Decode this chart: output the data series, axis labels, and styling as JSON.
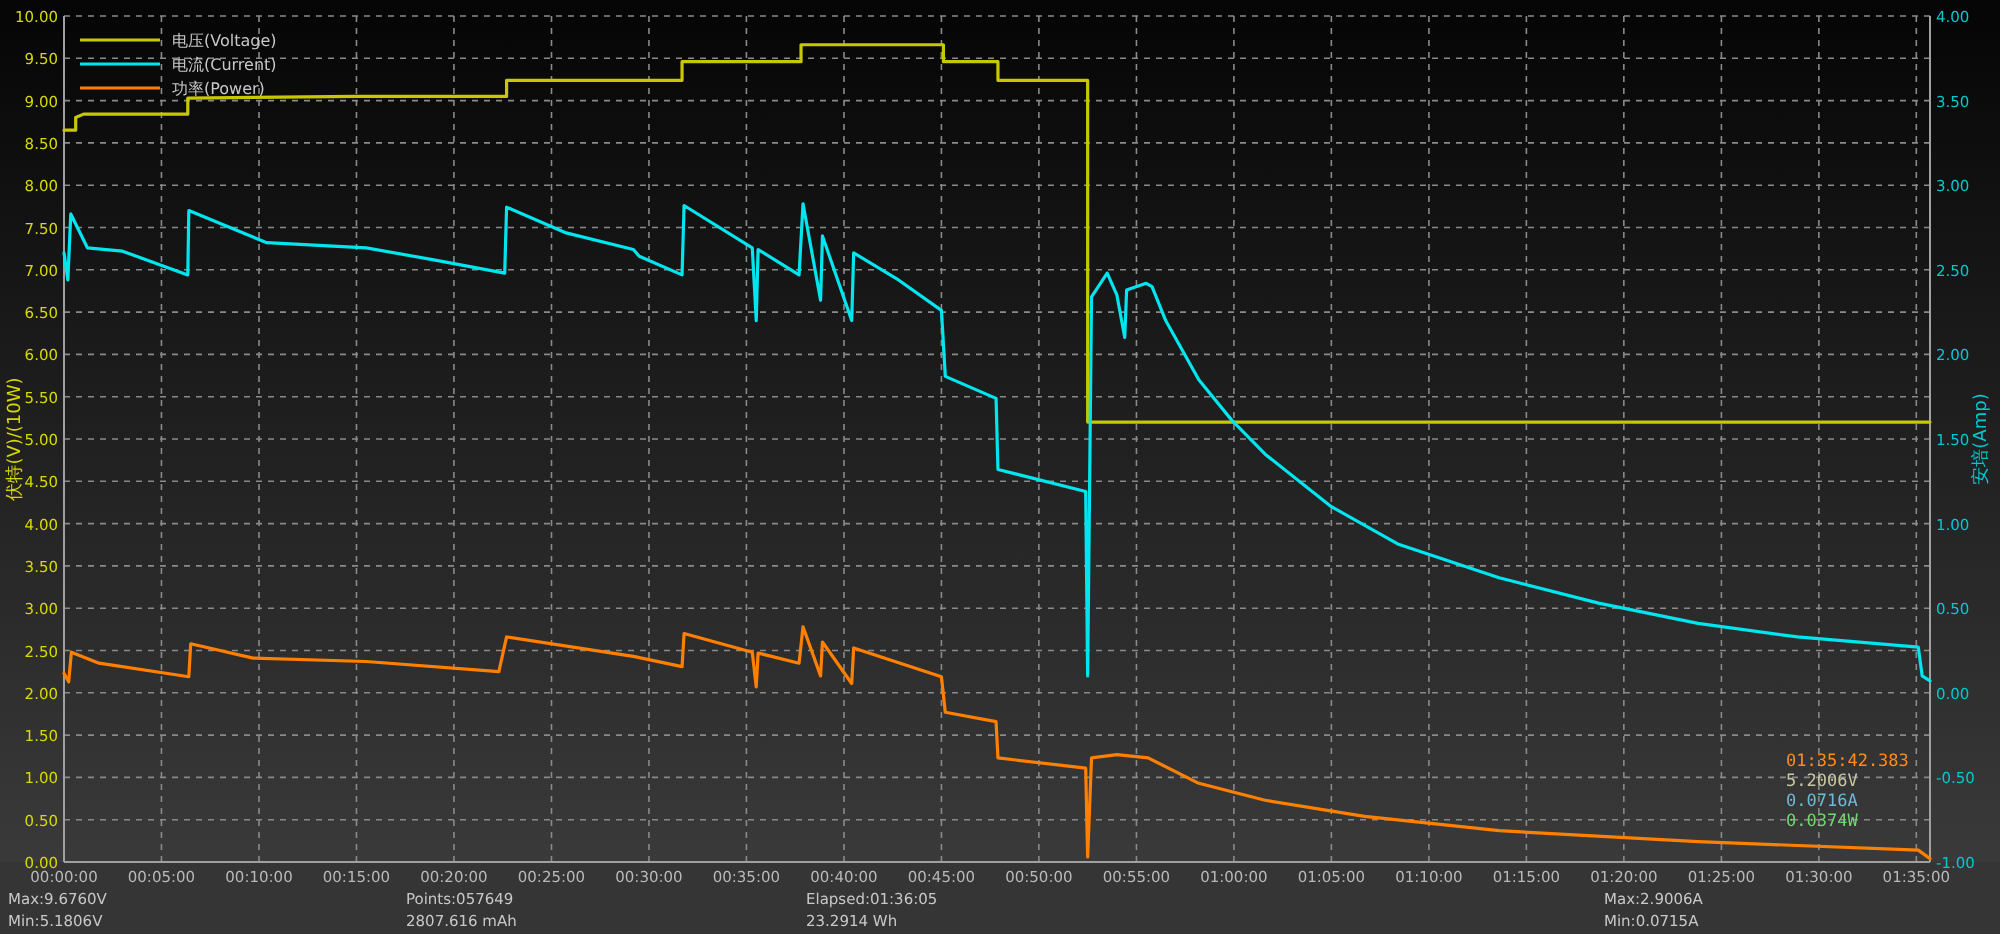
{
  "chart_data": {
    "type": "line",
    "ylabel": "伏特(V)/(10W)",
    "y2label": "安培(Amp)",
    "xlim": [
      0,
      1.595
    ],
    "ylim": [
      0,
      10
    ],
    "y2lim": [
      -1,
      4
    ],
    "xticks": [
      {
        "value": 0,
        "label": "00:00:00"
      },
      {
        "value": 0.0833,
        "label": "00:05:00"
      },
      {
        "value": 0.1667,
        "label": "00:10:00"
      },
      {
        "value": 0.25,
        "label": "00:15:00"
      },
      {
        "value": 0.3333,
        "label": "00:20:00"
      },
      {
        "value": 0.4167,
        "label": "00:25:00"
      },
      {
        "value": 0.5,
        "label": "00:30:00"
      },
      {
        "value": 0.5833,
        "label": "00:35:00"
      },
      {
        "value": 0.6667,
        "label": "00:40:00"
      },
      {
        "value": 0.75,
        "label": "00:45:00"
      },
      {
        "value": 0.8333,
        "label": "00:50:00"
      },
      {
        "value": 0.9167,
        "label": "00:55:00"
      },
      {
        "value": 1,
        "label": "01:00:00"
      },
      {
        "value": 1.0833,
        "label": "01:05:00"
      },
      {
        "value": 1.1667,
        "label": "01:10:00"
      },
      {
        "value": 1.25,
        "label": "01:15:00"
      },
      {
        "value": 1.3333,
        "label": "01:20:00"
      },
      {
        "value": 1.4167,
        "label": "01:25:00"
      },
      {
        "value": 1.5,
        "label": "01:30:00"
      },
      {
        "value": 1.5833,
        "label": "01:35:00"
      }
    ],
    "yticks": [
      {
        "value": 0,
        "label": "0.00"
      },
      {
        "value": 0.5,
        "label": "0.50"
      },
      {
        "value": 1,
        "label": "1.00"
      },
      {
        "value": 1.5,
        "label": "1.50"
      },
      {
        "value": 2,
        "label": "2.00"
      },
      {
        "value": 2.5,
        "label": "2.50"
      },
      {
        "value": 3,
        "label": "3.00"
      },
      {
        "value": 3.5,
        "label": "3.50"
      },
      {
        "value": 4,
        "label": "4.00"
      },
      {
        "value": 4.5,
        "label": "4.50"
      },
      {
        "value": 5,
        "label": "5.00"
      },
      {
        "value": 5.5,
        "label": "5.50"
      },
      {
        "value": 6,
        "label": "6.00"
      },
      {
        "value": 6.5,
        "label": "6.50"
      },
      {
        "value": 7,
        "label": "7.00"
      },
      {
        "value": 7.5,
        "label": "7.50"
      },
      {
        "value": 8,
        "label": "8.00"
      },
      {
        "value": 8.5,
        "label": "8.50"
      },
      {
        "value": 9,
        "label": "9.00"
      },
      {
        "value": 9.5,
        "label": "9.50"
      },
      {
        "value": 10,
        "label": "10.00"
      }
    ],
    "y2ticks": [
      {
        "value": -1,
        "label": "-1.00"
      },
      {
        "value": -0.5,
        "label": "-0.50"
      },
      {
        "value": 0,
        "label": "0.00"
      },
      {
        "value": 0.5,
        "label": "0.50"
      },
      {
        "value": 1,
        "label": "1.00"
      },
      {
        "value": 1.5,
        "label": "1.50"
      },
      {
        "value": 2,
        "label": "2.00"
      },
      {
        "value": 2.5,
        "label": "2.50"
      },
      {
        "value": 3,
        "label": "3.00"
      },
      {
        "value": 3.5,
        "label": "3.50"
      },
      {
        "value": 4,
        "label": "4.00"
      }
    ],
    "grid": true,
    "legend": "top left",
    "series": [
      {
        "name": "电压(Voltage)",
        "color": "#c8c800",
        "x": [
          0,
          0.01,
          0.01,
          0.0167,
          0.1058,
          0.1058,
          0.25,
          0.3783,
          0.3783,
          0.5283,
          0.5283,
          0.63,
          0.63,
          0.7517,
          0.7517,
          0.7983,
          0.7983,
          0.875,
          0.875,
          1.595
        ],
        "values": [
          8.65,
          8.65,
          8.8,
          8.84,
          8.84,
          9.03,
          9.05,
          9.05,
          9.24,
          9.24,
          9.46,
          9.46,
          9.66,
          9.66,
          9.46,
          9.46,
          9.24,
          9.24,
          5.2,
          5.2
        ]
      },
      {
        "name": "电流(Current)",
        "color": "#00e5ee",
        "axis": "y2",
        "x": [
          0,
          0.0033,
          0.0058,
          0.02,
          0.05,
          0.1058,
          0.1067,
          0.1733,
          0.2583,
          0.315,
          0.3767,
          0.3783,
          0.4283,
          0.4867,
          0.4917,
          0.5283,
          0.53,
          0.5883,
          0.5917,
          0.5933,
          0.6283,
          0.6317,
          0.6467,
          0.6483,
          0.6733,
          0.675,
          0.7133,
          0.75,
          0.7533,
          0.7967,
          0.7983,
          0.8733,
          0.875,
          0.8783,
          0.8917,
          0.9,
          0.9067,
          0.9083,
          0.925,
          0.93,
          0.9417,
          0.97,
          0.9983,
          1.0267,
          1.0833,
          1.14,
          1.2267,
          1.3117,
          1.3967,
          1.4817,
          1.585,
          1.5883,
          1.595
        ],
        "values": [
          2.6,
          2.44,
          2.83,
          2.63,
          2.61,
          2.47,
          2.85,
          2.66,
          2.63,
          2.56,
          2.48,
          2.87,
          2.72,
          2.62,
          2.58,
          2.47,
          2.88,
          2.63,
          2.2,
          2.62,
          2.47,
          2.89,
          2.32,
          2.7,
          2.2,
          2.6,
          2.44,
          2.26,
          1.87,
          1.74,
          1.32,
          1.19,
          0.1,
          2.34,
          2.48,
          2.35,
          2.1,
          2.38,
          2.42,
          2.4,
          2.2,
          1.85,
          1.61,
          1.41,
          1.1,
          0.88,
          0.68,
          0.53,
          0.41,
          0.33,
          0.27,
          0.1,
          0.07
        ]
      },
      {
        "name": "功率(Power)",
        "color": "#ff8000",
        "x": [
          0,
          0.004,
          0.0063,
          0.03,
          0.1067,
          0.1083,
          0.1617,
          0.2583,
          0.3717,
          0.3783,
          0.4867,
          0.5283,
          0.53,
          0.5883,
          0.5917,
          0.5933,
          0.6283,
          0.6317,
          0.6467,
          0.6483,
          0.6733,
          0.675,
          0.75,
          0.7533,
          0.7967,
          0.7983,
          0.8733,
          0.875,
          0.8783,
          0.9,
          0.9267,
          0.97,
          1.0267,
          1.1117,
          1.2267,
          1.3967,
          1.585,
          1.595
        ],
        "values": [
          2.23,
          2.13,
          2.48,
          2.35,
          2.19,
          2.58,
          2.41,
          2.37,
          2.25,
          2.66,
          2.43,
          2.31,
          2.7,
          2.48,
          2.07,
          2.47,
          2.35,
          2.78,
          2.2,
          2.6,
          2.11,
          2.53,
          2.19,
          1.77,
          1.66,
          1.23,
          1.11,
          0.06,
          1.23,
          1.27,
          1.23,
          0.93,
          0.73,
          0.54,
          0.37,
          0.24,
          0.14,
          0.04
        ]
      }
    ],
    "annotations": [
      "Max:9.6760V",
      "Min:5.1806V",
      "Points:057649",
      "2807.616 mAh",
      "Elapsed:01:36:05",
      "23.2914 Wh",
      "Max:2.9006A",
      "Min:0.0715A",
      "01:35:42.383",
      "5.2006V",
      "0.0716A",
      "0.0374W"
    ]
  }
}
